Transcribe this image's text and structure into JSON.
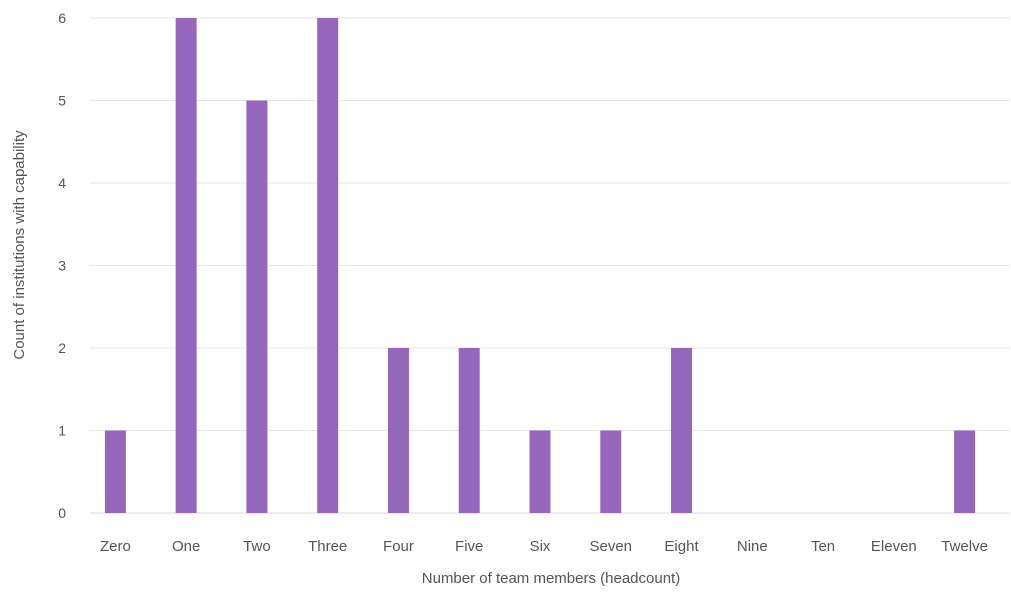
{
  "chart_data": {
    "type": "bar",
    "title": "",
    "xlabel": "Number of team members (headcount)",
    "ylabel": "Count of institutions with capability",
    "categories": [
      "Zero",
      "One",
      "Two",
      "Three",
      "Four",
      "Five",
      "Six",
      "Seven",
      "Eight",
      "Nine",
      "Ten",
      "Eleven",
      "Twelve"
    ],
    "values": [
      1,
      6,
      5,
      6,
      2,
      2,
      1,
      1,
      2,
      0,
      0,
      0,
      1
    ],
    "ylim": [
      0,
      6
    ],
    "yticks": [
      "0",
      "1",
      "2",
      "3",
      "4",
      "5",
      "6"
    ],
    "grid": true,
    "legend": "none",
    "colors": {
      "bar": "#9467bd",
      "grid": "#e6e6e6",
      "axis": "#d9d9d9",
      "text": "#555555"
    }
  }
}
